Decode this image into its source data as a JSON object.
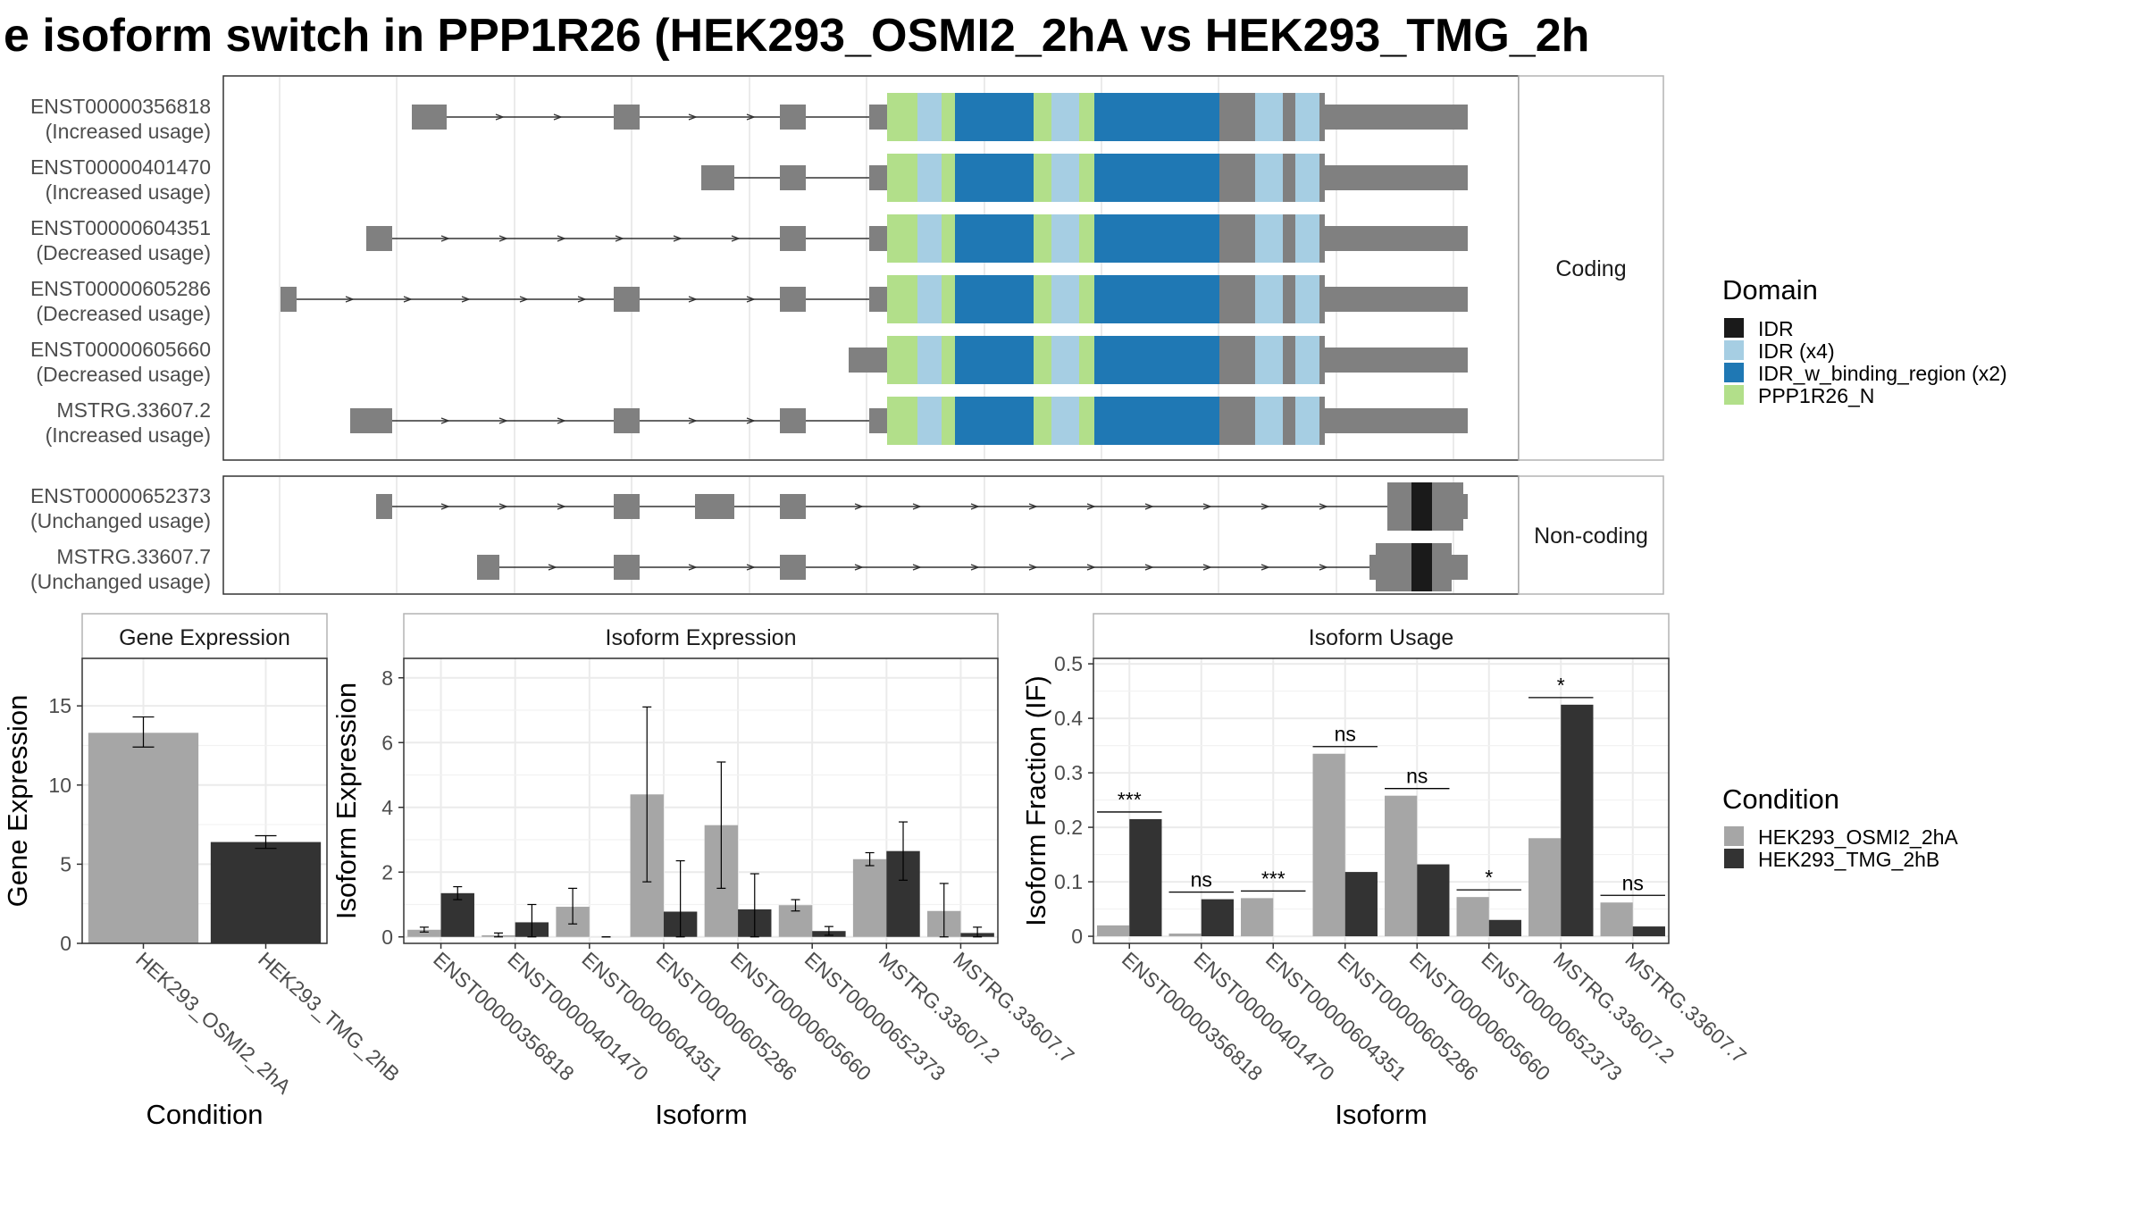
{
  "title": "e isoform switch in PPP1R26 (HEK293_OSMI2_2hA vs HEK293_TMG_2h",
  "colors": {
    "exon": "#808080",
    "cond_a": "#a6a6a6",
    "cond_b": "#333333",
    "IDR": "#1a1a1a",
    "IDR_x4": "#a6cee3",
    "IDR_w_binding_region": "#1f78b4",
    "PPP1R26_N": "#b2df8a"
  },
  "structure": {
    "coding_label": "Coding",
    "noncoding_label": "Non-coding",
    "coding": [
      {
        "id": "ENST00000356818",
        "usage": "(Increased usage)"
      },
      {
        "id": "ENST00000401470",
        "usage": "(Increased usage)"
      },
      {
        "id": "ENST00000604351",
        "usage": "(Decreased usage)"
      },
      {
        "id": "ENST00000605286",
        "usage": "(Decreased usage)"
      },
      {
        "id": "ENST00000605660",
        "usage": "(Decreased usage)"
      },
      {
        "id": "MSTRG.33607.2",
        "usage": "(Increased usage)"
      }
    ],
    "noncoding": [
      {
        "id": "ENST00000652373",
        "usage": "(Unchanged usage)"
      },
      {
        "id": "MSTRG.33607.7",
        "usage": "(Unchanged usage)"
      }
    ]
  },
  "domain_legend": {
    "title": "Domain",
    "items": [
      "IDR",
      "IDR (x4)",
      "IDR_w_binding_region (x2)",
      "PPP1R26_N"
    ]
  },
  "condition_legend": {
    "title": "Condition",
    "items": [
      "HEK293_OSMI2_2hA",
      "HEK293_TMG_2hB"
    ]
  },
  "chart_data": [
    {
      "type": "bar",
      "title": "Gene Expression",
      "xlabel": "Condition",
      "ylabel": "Gene Expression",
      "ylim": [
        0,
        18
      ],
      "yticks": [
        0,
        5,
        10,
        15
      ],
      "categories": [
        "HEK293_OSMI2_2hA",
        "HEK293_TMG_2hB"
      ],
      "values": [
        13.3,
        6.4
      ],
      "errors": [
        [
          12.4,
          14.3
        ],
        [
          6.0,
          6.8
        ]
      ]
    },
    {
      "type": "bar",
      "title": "Isoform Expression",
      "xlabel": "Isoform",
      "ylabel": "Isoform Expression",
      "ylim": [
        -0.2,
        8.6
      ],
      "yticks": [
        0,
        2,
        4,
        6,
        8
      ],
      "categories": [
        "ENST00000356818",
        "ENST00000401470",
        "ENST00000604351",
        "ENST00000605286",
        "ENST00000605660",
        "ENST00000652373",
        "MSTRG.33607.2",
        "MSTRG.33607.7"
      ],
      "series": [
        {
          "name": "HEK293_OSMI2_2hA",
          "values": [
            0.22,
            0.05,
            0.93,
            4.4,
            3.45,
            0.98,
            2.4,
            0.8
          ],
          "errors": [
            [
              0.15,
              0.3
            ],
            [
              0.0,
              0.12
            ],
            [
              0.4,
              1.5
            ],
            [
              1.7,
              7.1
            ],
            [
              1.5,
              5.4
            ],
            [
              0.8,
              1.15
            ],
            [
              2.2,
              2.6
            ],
            [
              0.0,
              1.65
            ]
          ]
        },
        {
          "name": "HEK293_TMG_2hB",
          "values": [
            1.35,
            0.45,
            0.0,
            0.78,
            0.85,
            0.18,
            2.65,
            0.12
          ],
          "errors": [
            [
              1.15,
              1.55
            ],
            [
              0.0,
              1.0
            ],
            [
              0.0,
              0.0
            ],
            [
              0.0,
              2.35
            ],
            [
              0.0,
              1.95
            ],
            [
              0.05,
              0.32
            ],
            [
              1.75,
              3.55
            ],
            [
              0.0,
              0.3
            ]
          ]
        }
      ]
    },
    {
      "type": "bar",
      "title": "Isoform Usage",
      "xlabel": "Isoform",
      "ylabel": "Isoform Fraction (IF)",
      "ylim": [
        -0.013,
        0.51
      ],
      "yticks": [
        0.0,
        0.1,
        0.2,
        0.3,
        0.4,
        0.5
      ],
      "categories": [
        "ENST00000356818",
        "ENST00000401470",
        "ENST00000604351",
        "ENST00000605286",
        "ENST00000605660",
        "ENST00000652373",
        "MSTRG.33607.2",
        "MSTRG.33607.7"
      ],
      "series": [
        {
          "name": "HEK293_OSMI2_2hA",
          "values": [
            0.02,
            0.005,
            0.07,
            0.335,
            0.258,
            0.072,
            0.18,
            0.062
          ]
        },
        {
          "name": "HEK293_TMG_2hB",
          "values": [
            0.215,
            0.068,
            0.0,
            0.118,
            0.132,
            0.03,
            0.425,
            0.018
          ]
        }
      ],
      "significance": [
        "***",
        "ns",
        "***",
        "ns",
        "ns",
        "*",
        "*",
        "ns"
      ]
    }
  ]
}
